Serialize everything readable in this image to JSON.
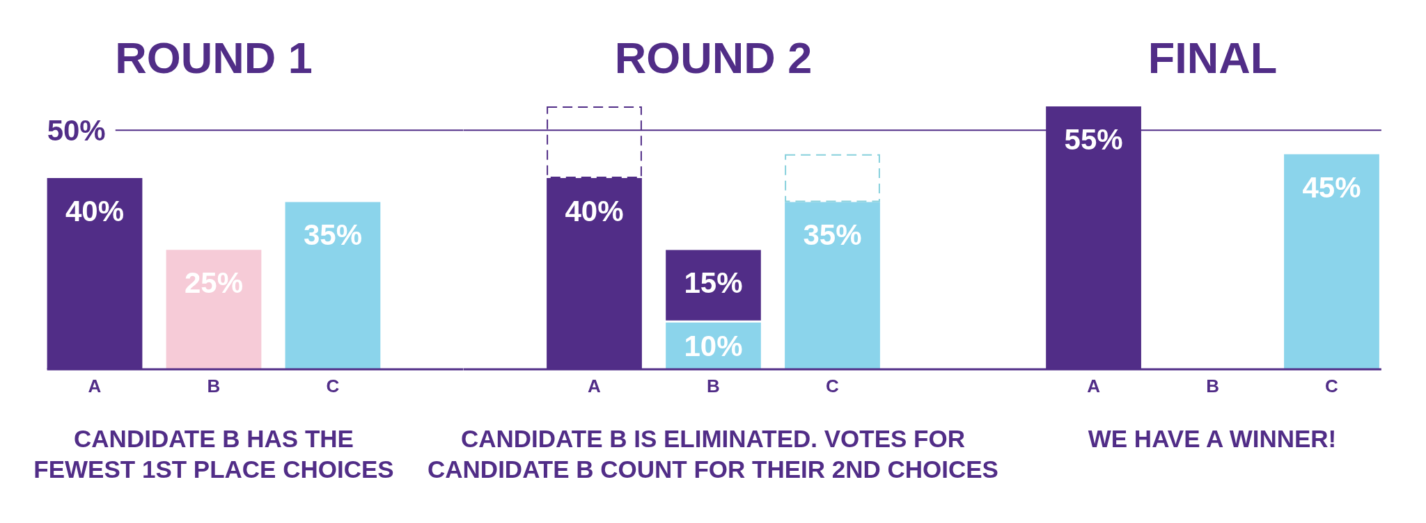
{
  "chart_data": [
    {
      "type": "bar",
      "title": "ROUND 1",
      "categories": [
        "A",
        "B",
        "C"
      ],
      "values": [
        40,
        25,
        35
      ],
      "colors": [
        "#512d87",
        "#f6cbd7",
        "#8bd4eb"
      ],
      "value_labels": [
        "40%",
        "25%",
        "35%"
      ],
      "tick_labels": "x",
      "ref_lines": [
        {
          "axis": "y",
          "value": 50,
          "label": "50%",
          "color": "#512d87"
        }
      ],
      "annotations": [
        "CANDIDATE B HAS THE FEWEST 1ST PLACE CHOICES"
      ]
    },
    {
      "type": "bar",
      "title": "ROUND 2",
      "categories": [
        "A",
        "B",
        "C"
      ],
      "stacked": true,
      "series": [
        {
          "color": "#512d87",
          "values": [
            40,
            null,
            null
          ],
          "value_labels": [
            "40%",
            null,
            null
          ]
        },
        {
          "color": "#8bd4eb",
          "values": [
            null,
            10,
            35
          ],
          "value_labels": [
            null,
            "10%",
            "35%"
          ]
        },
        {
          "color": "#512d87",
          "values": [
            null,
            15,
            null
          ],
          "value_labels": [
            null,
            "15%",
            null
          ]
        },
        {
          "color": "#512d87",
          "values": [
            15,
            null,
            null
          ],
          "line_style": "dashed"
        },
        {
          "color": "#86d0dc",
          "values": [
            null,
            null,
            10
          ],
          "line_style": "dashed"
        }
      ],
      "tick_labels": "x",
      "ref_lines": [
        {
          "axis": "y",
          "value": 50,
          "color": "#512d87"
        }
      ],
      "annotations": [
        "CANDIDATE B IS ELIMINATED. VOTES FOR CANDIDATE B COUNT FOR THEIR 2ND CHOICES"
      ]
    },
    {
      "type": "bar",
      "title": "FINAL",
      "categories": [
        "A",
        "B",
        "C"
      ],
      "values": [
        55,
        null,
        45
      ],
      "colors": [
        "#512d87",
        null,
        "#8bd4eb"
      ],
      "value_labels": [
        "55%",
        null,
        "45%"
      ],
      "tick_labels": "x",
      "ref_lines": [
        {
          "axis": "y",
          "value": 50,
          "color": "#512d87"
        }
      ],
      "annotations": [
        "WE HAVE A WINNER!"
      ]
    }
  ]
}
